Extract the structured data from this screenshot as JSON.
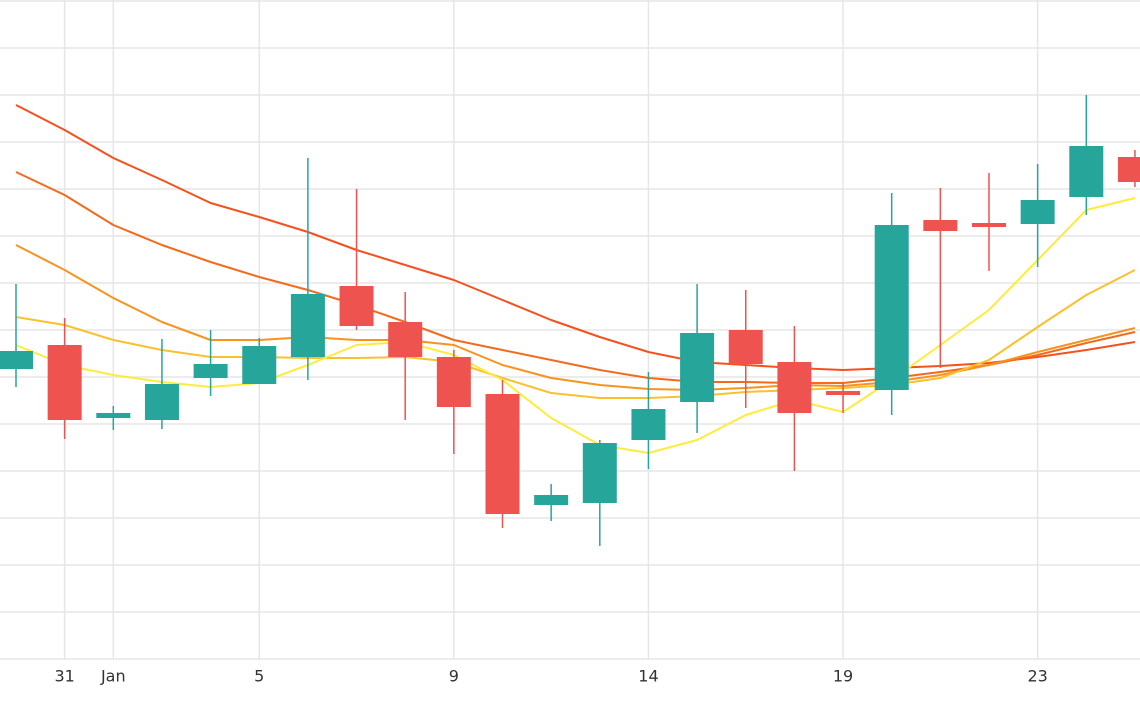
{
  "chart_data": {
    "type": "candlestick",
    "categories": [
      null,
      "31",
      "Jan",
      null,
      null,
      "5",
      null,
      null,
      null,
      "9",
      null,
      null,
      null,
      "14",
      null,
      null,
      null,
      "19",
      null,
      null,
      null,
      "23",
      null,
      null
    ],
    "open": [
      290,
      314,
      241,
      239,
      281,
      275,
      302,
      373,
      337,
      302,
      265,
      154,
      156,
      219,
      257,
      329,
      297,
      268,
      269,
      439,
      436,
      435,
      462,
      502
    ],
    "close": [
      308,
      239,
      246,
      275,
      295,
      313,
      365,
      333,
      302,
      252,
      145,
      164,
      216,
      250,
      326,
      295,
      246,
      264,
      434,
      428,
      432,
      459,
      513,
      477
    ],
    "high": [
      375,
      341,
      253,
      320,
      329,
      321,
      501,
      470,
      367,
      309,
      279,
      175,
      219,
      287,
      375,
      369,
      333,
      276,
      466,
      471,
      486,
      495,
      564,
      509
    ],
    "low": [
      272,
      220,
      229,
      230,
      263,
      275,
      279,
      329,
      239,
      205,
      131,
      138,
      113,
      190,
      226,
      251,
      188,
      246,
      244,
      291,
      388,
      392,
      444,
      472
    ],
    "up_color": "#26a69a",
    "down_color": "#ef5350",
    "series": [
      {
        "color": "#f4511e",
        "values": [
          554,
          529,
          501,
          479,
          456,
          442,
          427,
          409,
          394,
          379,
          359,
          339,
          322,
          307,
          297,
          294,
          291,
          289,
          291,
          293,
          296,
          302,
          309,
          317
        ]
      },
      {
        "color": "#f26b1d",
        "values": [
          487,
          464,
          434,
          414,
          397,
          382,
          369,
          354,
          337,
          319,
          309,
          299,
          289,
          281,
          277,
          277,
          276,
          276,
          281,
          287,
          294,
          304,
          316,
          327
        ]
      },
      {
        "color": "#f7931e",
        "values": [
          414,
          389,
          361,
          337,
          319,
          319,
          322,
          319,
          319,
          314,
          294,
          281,
          274,
          270,
          269,
          271,
          274,
          273,
          277,
          284,
          294,
          307,
          319,
          331
        ]
      },
      {
        "color": "#fbc02d",
        "values": [
          342,
          334,
          319,
          309,
          302,
          302,
          301,
          301,
          302,
          297,
          281,
          266,
          261,
          261,
          263,
          267,
          269,
          271,
          274,
          281,
          299,
          332,
          364,
          389
        ]
      },
      {
        "color": "#ffeb3b",
        "values": [
          314,
          294,
          284,
          277,
          272,
          276,
          294,
          314,
          317,
          304,
          279,
          241,
          214,
          206,
          219,
          244,
          259,
          247,
          279,
          314,
          349,
          399,
          449,
          461
        ]
      }
    ],
    "ylim": [
      0,
      659
    ],
    "yticks": [
      47,
      94,
      141,
      188,
      235,
      282,
      329,
      376,
      423,
      470,
      517,
      564,
      611,
      658
    ],
    "grid": true
  }
}
